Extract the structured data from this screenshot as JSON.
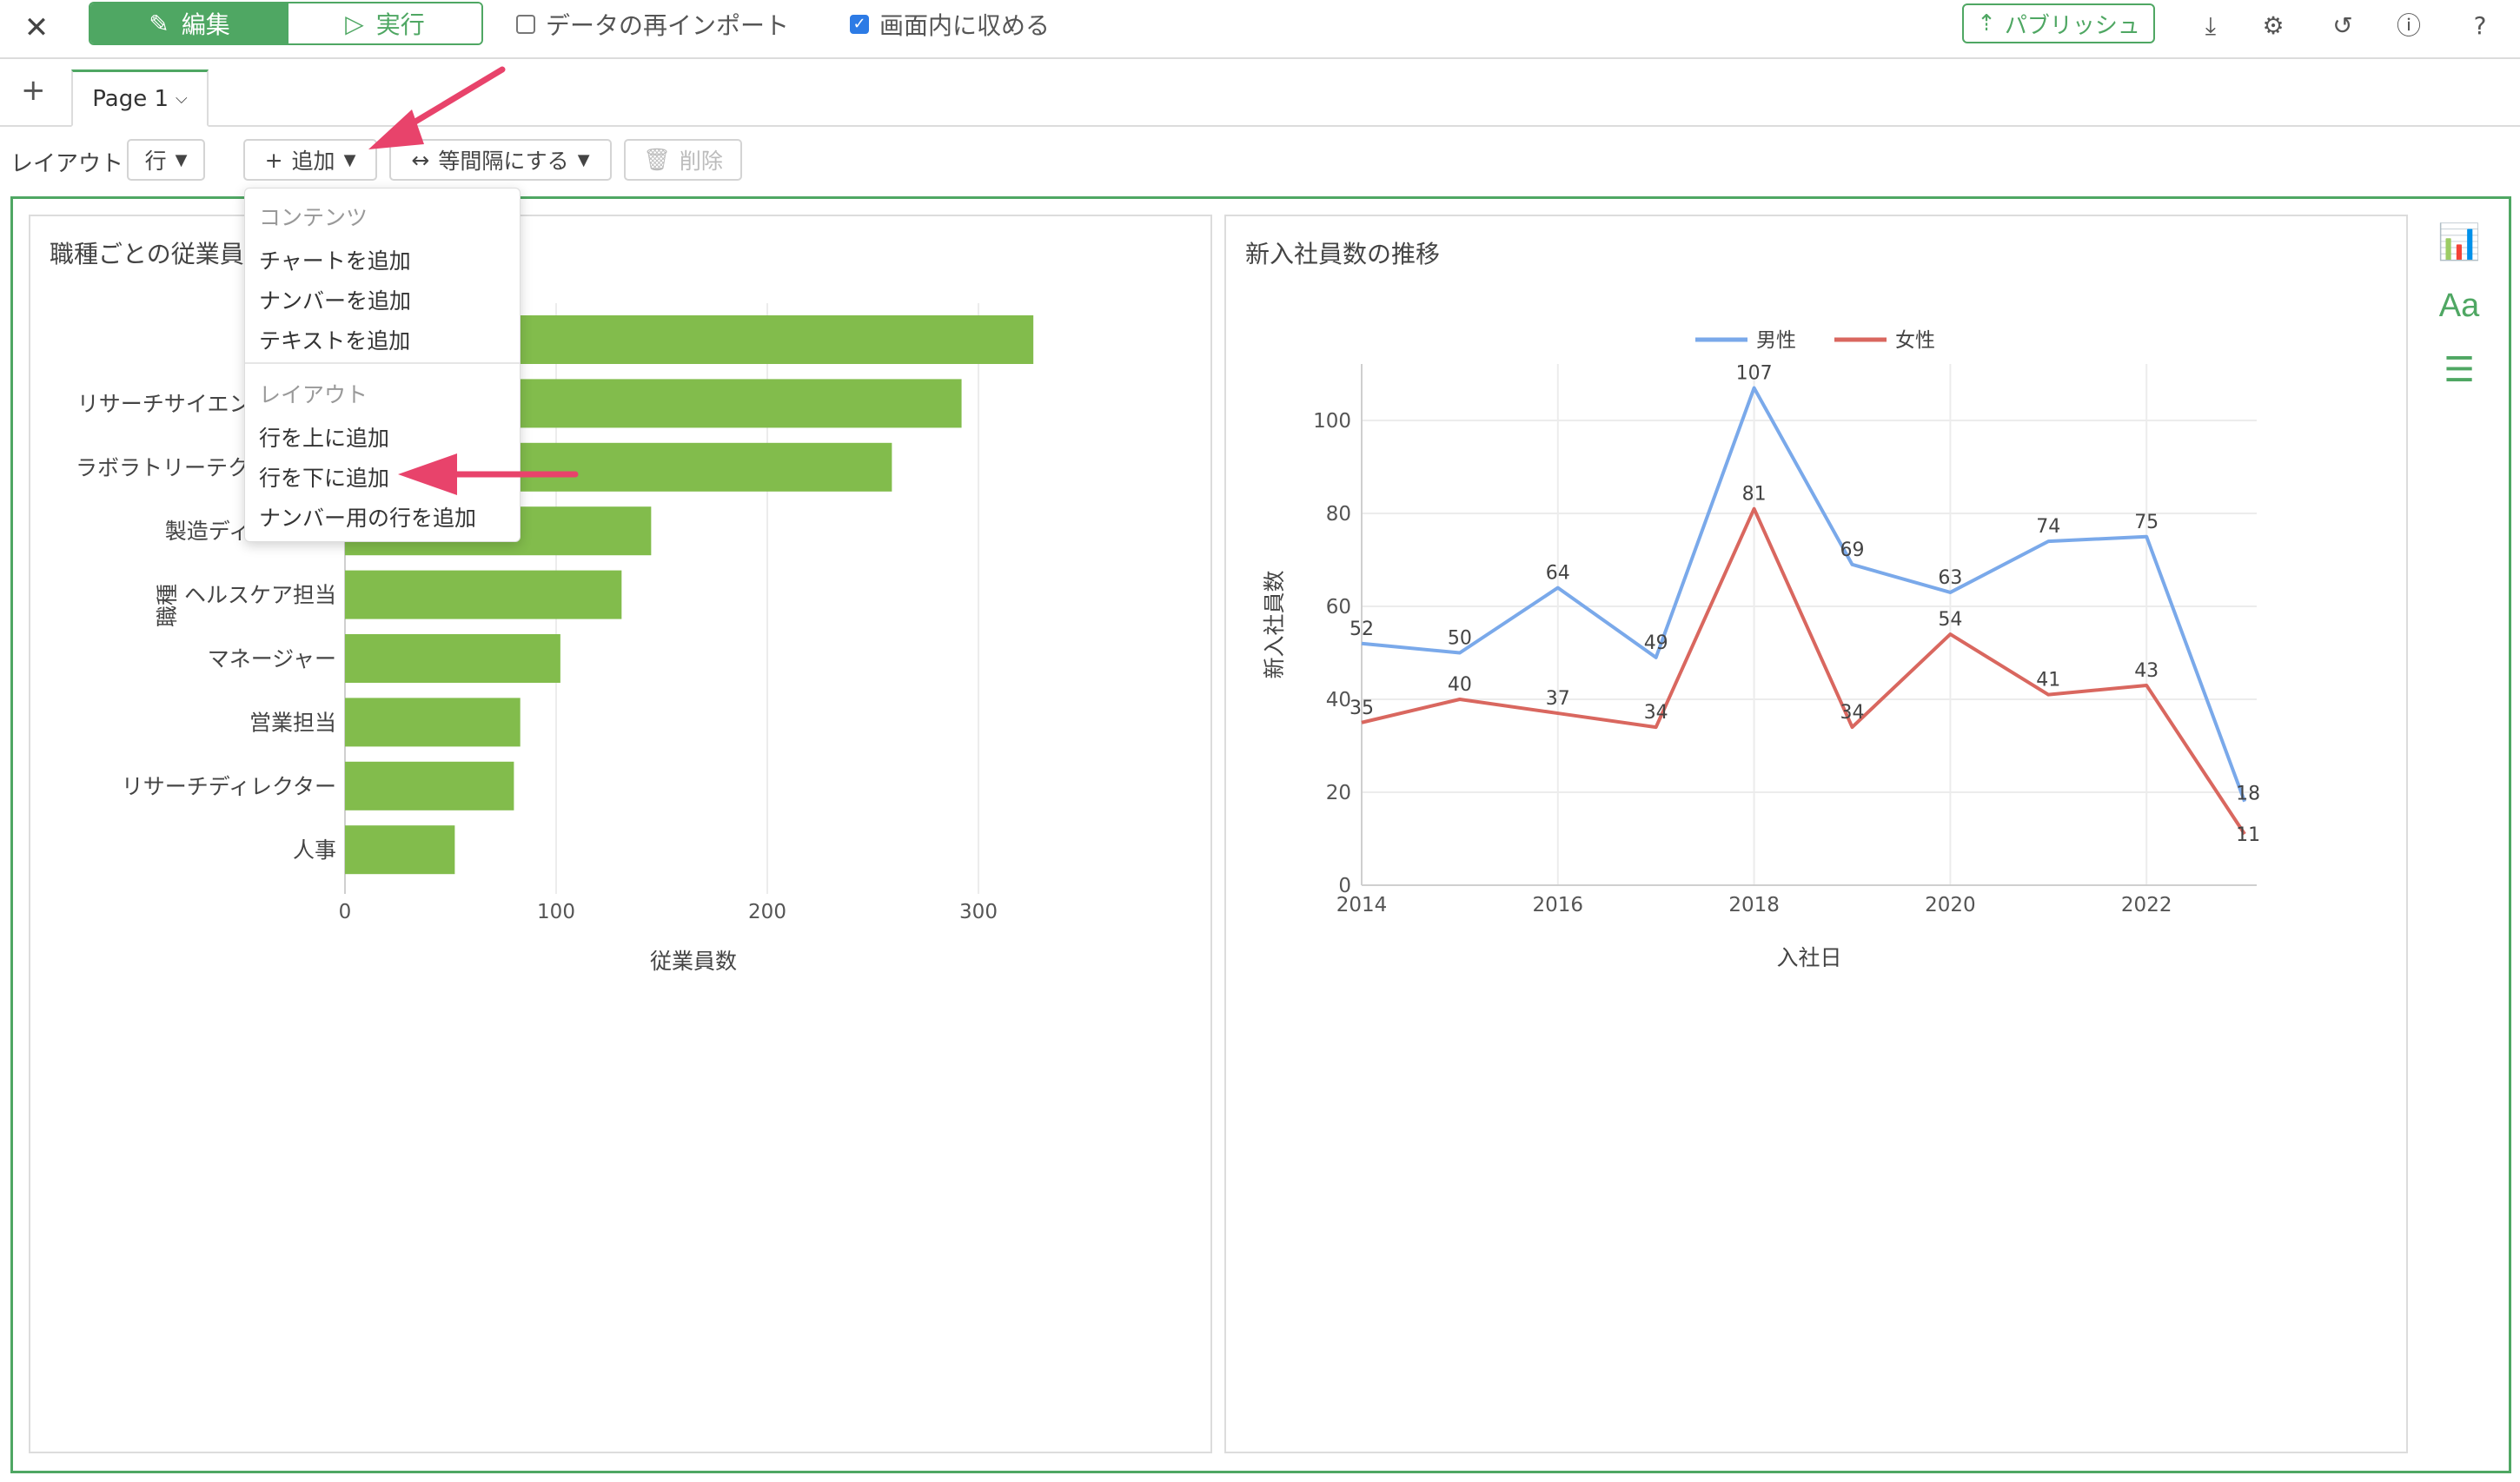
{
  "toolbar": {
    "close_icon": "close-icon",
    "edit_label": "編集",
    "run_label": "実行",
    "reimport_label": "データの再インポート",
    "reimport_checked": false,
    "fit_label": "画面内に収める",
    "fit_checked": true,
    "publish_label": "パブリッシュ"
  },
  "tabs": {
    "add": "+",
    "page_label": "Page 1"
  },
  "layout_bar": {
    "label": "レイアウト",
    "row_select": "行",
    "add_button": "追加",
    "equal_spacing": "等間隔にする",
    "delete": "削除"
  },
  "add_menu": {
    "header_contents": "コンテンツ",
    "add_chart": "チャートを追加",
    "add_number": "ナンバーを追加",
    "add_text": "テキストを追加",
    "header_layout": "レイアウト",
    "add_row_above": "行を上に追加",
    "add_row_below": "行を下に追加",
    "add_number_row": "ナンバー用の行を追加"
  },
  "panel_left": {
    "title": "職種ごとの従業員数"
  },
  "panel_right": {
    "title": "新入社員数の推移"
  },
  "colors": {
    "accent": "#4fa763",
    "bar": "#82bc4c",
    "male": "#7aa9ea",
    "female": "#d9675f",
    "arrow": "#e8436b"
  },
  "chart_data": [
    {
      "type": "bar",
      "orientation": "horizontal",
      "categories": [
        "",
        "リサーチサイエンティスト",
        "ラボラトリーテクニシャン",
        "製造ディレクター",
        "ヘルスケア担当",
        "マネージャー",
        "営業担当",
        "リサーチディレクター",
        "人事"
      ],
      "values": [
        326,
        292,
        259,
        145,
        131,
        102,
        83,
        80,
        52
      ],
      "xlabel": "従業員数",
      "ylabel": "職種",
      "xlim": [
        0,
        340
      ],
      "xticks": [
        0,
        100,
        200,
        300
      ],
      "grid": true
    },
    {
      "type": "line",
      "x": [
        2014,
        2015,
        2016,
        2017,
        2018,
        2019,
        2020,
        2021,
        2022,
        2023
      ],
      "series": [
        {
          "name": "男性",
          "values": [
            52,
            50,
            64,
            49,
            107,
            69,
            63,
            74,
            75,
            18
          ],
          "color": "#7aa9ea"
        },
        {
          "name": "女性",
          "values": [
            35,
            40,
            37,
            34,
            81,
            34,
            54,
            41,
            43,
            11
          ],
          "color": "#d9675f"
        }
      ],
      "xlabel": "入社日",
      "ylabel": "新入社員数",
      "xticks": [
        "2014",
        "2016",
        "2018",
        "2020",
        "2022"
      ],
      "yticks": [
        "0",
        "20",
        "40",
        "60",
        "80",
        "100"
      ],
      "ylim": [
        0,
        110
      ],
      "legend": "top",
      "grid": true
    }
  ]
}
